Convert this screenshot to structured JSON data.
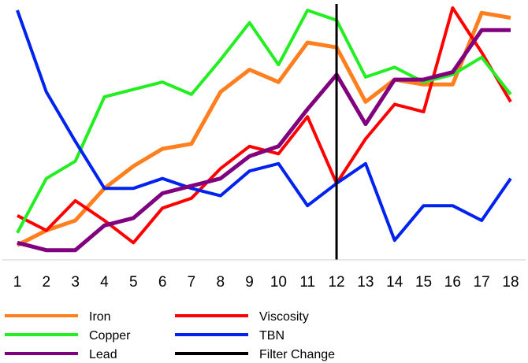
{
  "chart_data": {
    "type": "line",
    "title": "",
    "xlabel": "",
    "ylabel": "",
    "x": [
      1,
      2,
      3,
      4,
      5,
      6,
      7,
      8,
      9,
      10,
      11,
      12,
      13,
      14,
      15,
      16,
      17,
      18
    ],
    "x_tick_labels": [
      "1",
      "2",
      "3",
      "4",
      "5",
      "6",
      "7",
      "8",
      "9",
      "10",
      "11",
      "12",
      "13",
      "14",
      "15",
      "16",
      "17",
      "18"
    ],
    "ylim": [
      0,
      100
    ],
    "y_axis_labels_shown": false,
    "grid": false,
    "legend_position": "bottom",
    "series": [
      {
        "name": "Iron",
        "color": "#ff7f1e",
        "values": [
          4,
          10,
          14,
          27,
          36,
          43,
          45,
          66,
          75,
          70,
          86,
          84,
          62,
          71,
          69,
          69,
          98,
          96
        ]
      },
      {
        "name": "Viscosity",
        "color": "#ff0000",
        "values": [
          16,
          10,
          22,
          14,
          5,
          19,
          23,
          35,
          44,
          41,
          56,
          29,
          47,
          61,
          58,
          100,
          82,
          62
        ]
      },
      {
        "name": "Copper",
        "color": "#22ee22",
        "values": [
          9,
          31,
          38,
          64,
          67,
          70,
          65,
          79,
          94,
          77,
          99,
          95,
          72,
          76,
          70,
          73,
          80,
          65
        ]
      },
      {
        "name": "TBN",
        "color": "#0022ee",
        "values": [
          99,
          66,
          46,
          27,
          27,
          31,
          27,
          24,
          34,
          37,
          20,
          29,
          37,
          6,
          20,
          20,
          14,
          31
        ]
      },
      {
        "name": "Lead",
        "color": "#800080",
        "values": [
          5,
          2,
          2,
          12,
          15,
          25,
          28,
          31,
          40,
          44,
          59,
          73,
          53,
          71,
          71,
          74,
          91,
          91
        ]
      },
      {
        "name": "Filter Change",
        "color": "#000000",
        "type": "vertical-line",
        "x": 12
      }
    ]
  }
}
